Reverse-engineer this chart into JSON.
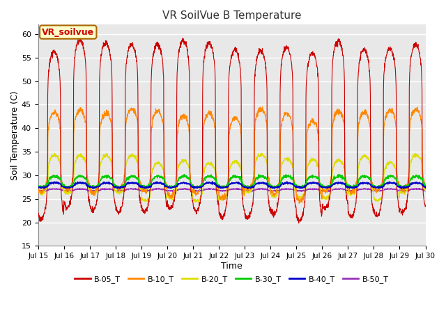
{
  "title": "VR SoilVue B Temperature",
  "xlabel": "Time",
  "ylabel": "Soil Temperature (C)",
  "ylim": [
    15,
    62
  ],
  "figure_bg": "#ffffff",
  "plot_bg": "#e8e8e8",
  "grid_color": "#ffffff",
  "annotation_text": "VR_soilvue",
  "annotation_fg": "#cc0000",
  "annotation_bg": "#ffffcc",
  "annotation_border": "#aa6600",
  "series_colors": {
    "B-05_T": "#cc0000",
    "B-10_T": "#ff8800",
    "B-20_T": "#dddd00",
    "B-30_T": "#00cc00",
    "B-40_T": "#0000cc",
    "B-50_T": "#9933bb"
  },
  "tick_labels": [
    "Jul 15",
    "Jul 16",
    "Jul 17",
    "Jul 18",
    "Jul 19",
    "Jul 20",
    "Jul 21",
    "Jul 22",
    "Jul 23",
    "Jul 24",
    "Jul 25",
    "Jul 26",
    "Jul 27",
    "Jul 28",
    "Jul 29",
    "Jul 30"
  ],
  "yticks": [
    15,
    20,
    25,
    30,
    35,
    40,
    45,
    50,
    55,
    60
  ],
  "n_days": 15,
  "seed": 1234
}
